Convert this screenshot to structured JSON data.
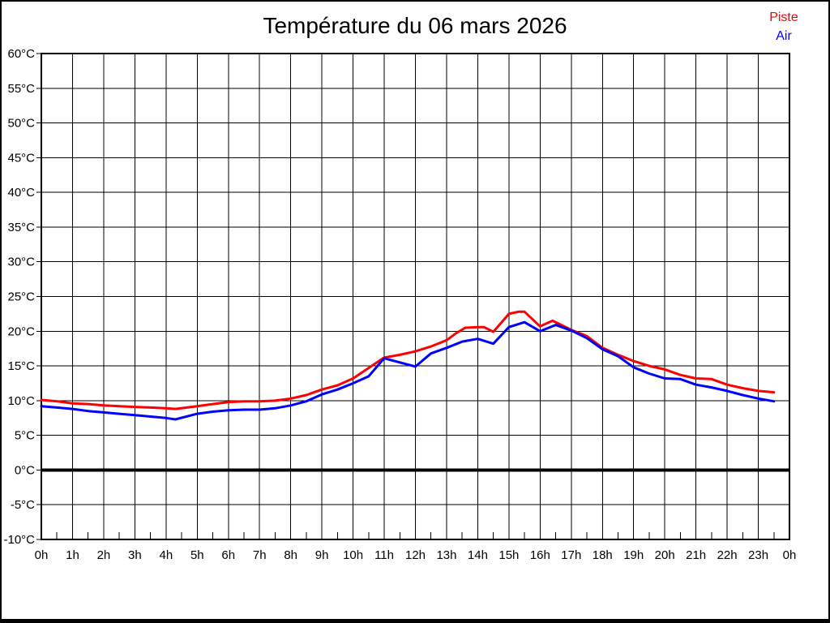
{
  "chart_data": {
    "type": "line",
    "title": "Température du 06 mars 2026",
    "xlabel": "",
    "ylabel": "",
    "xlim": [
      0,
      24
    ],
    "ylim": [
      -10,
      60
    ],
    "grid": true,
    "zero_line_value": 0,
    "legend_position": "top-right",
    "x_tick_labels": [
      "0h",
      "1h",
      "2h",
      "3h",
      "4h",
      "5h",
      "6h",
      "7h",
      "8h",
      "9h",
      "10h",
      "11h",
      "12h",
      "13h",
      "14h",
      "15h",
      "16h",
      "17h",
      "18h",
      "19h",
      "20h",
      "21h",
      "22h",
      "23h",
      "0h"
    ],
    "y_tick_labels": [
      "60°C",
      "55°C",
      "50°C",
      "45°C",
      "40°C",
      "35°C",
      "30°C",
      "25°C",
      "20°C",
      "15°C",
      "10°C",
      "5°C",
      "0°C",
      "-5°C",
      "-10°C"
    ],
    "y_tick_values": [
      60,
      55,
      50,
      45,
      40,
      35,
      30,
      25,
      20,
      15,
      10,
      5,
      0,
      -5,
      -10
    ],
    "series": [
      {
        "name": "Piste",
        "color": "#ff0000",
        "points": [
          [
            0,
            10.1
          ],
          [
            0.5,
            9.9
          ],
          [
            1,
            9.6
          ],
          [
            1.5,
            9.5
          ],
          [
            2,
            9.3
          ],
          [
            2.5,
            9.2
          ],
          [
            3,
            9.1
          ],
          [
            3.5,
            9.0
          ],
          [
            4,
            8.9
          ],
          [
            4.3,
            8.8
          ],
          [
            5,
            9.2
          ],
          [
            5.5,
            9.5
          ],
          [
            6,
            9.8
          ],
          [
            6.5,
            9.9
          ],
          [
            7,
            9.9
          ],
          [
            7.5,
            10.0
          ],
          [
            8,
            10.3
          ],
          [
            8.5,
            10.8
          ],
          [
            9,
            11.6
          ],
          [
            9.5,
            12.2
          ],
          [
            10,
            13.2
          ],
          [
            10.5,
            14.7
          ],
          [
            11,
            16.2
          ],
          [
            11.5,
            16.6
          ],
          [
            12,
            17.1
          ],
          [
            12.5,
            17.8
          ],
          [
            13,
            18.7
          ],
          [
            13.3,
            19.7
          ],
          [
            13.6,
            20.5
          ],
          [
            14,
            20.6
          ],
          [
            14.2,
            20.6
          ],
          [
            14.5,
            19.9
          ],
          [
            15,
            22.5
          ],
          [
            15.3,
            22.8
          ],
          [
            15.5,
            22.8
          ],
          [
            16,
            20.7
          ],
          [
            16.4,
            21.5
          ],
          [
            17,
            20.2
          ],
          [
            17.5,
            19.3
          ],
          [
            18,
            17.6
          ],
          [
            18.5,
            16.6
          ],
          [
            19,
            15.7
          ],
          [
            19.5,
            15.0
          ],
          [
            20,
            14.5
          ],
          [
            20.5,
            13.7
          ],
          [
            21,
            13.2
          ],
          [
            21.5,
            13.1
          ],
          [
            22,
            12.3
          ],
          [
            22.5,
            11.8
          ],
          [
            23,
            11.4
          ],
          [
            23.5,
            11.2
          ]
        ]
      },
      {
        "name": "Air",
        "color": "#0000ff",
        "points": [
          [
            0,
            9.2
          ],
          [
            0.5,
            9.0
          ],
          [
            1,
            8.8
          ],
          [
            1.5,
            8.5
          ],
          [
            2,
            8.3
          ],
          [
            2.5,
            8.1
          ],
          [
            3,
            7.9
          ],
          [
            3.5,
            7.7
          ],
          [
            4,
            7.5
          ],
          [
            4.3,
            7.3
          ],
          [
            5,
            8.1
          ],
          [
            5.5,
            8.4
          ],
          [
            6,
            8.6
          ],
          [
            6.5,
            8.7
          ],
          [
            7,
            8.7
          ],
          [
            7.5,
            8.9
          ],
          [
            8,
            9.3
          ],
          [
            8.5,
            9.9
          ],
          [
            9,
            10.9
          ],
          [
            9.5,
            11.6
          ],
          [
            10,
            12.5
          ],
          [
            10.5,
            13.5
          ],
          [
            11,
            16.1
          ],
          [
            11.5,
            15.5
          ],
          [
            12,
            14.9
          ],
          [
            12.5,
            16.8
          ],
          [
            13,
            17.6
          ],
          [
            13.5,
            18.5
          ],
          [
            14,
            18.9
          ],
          [
            14.5,
            18.2
          ],
          [
            15,
            20.6
          ],
          [
            15.5,
            21.3
          ],
          [
            16,
            20.0
          ],
          [
            16.5,
            20.9
          ],
          [
            17,
            20.1
          ],
          [
            17.5,
            19.0
          ],
          [
            18,
            17.4
          ],
          [
            18.5,
            16.4
          ],
          [
            19,
            14.8
          ],
          [
            19.5,
            13.9
          ],
          [
            20,
            13.2
          ],
          [
            20.5,
            13.1
          ],
          [
            21,
            12.3
          ],
          [
            21.5,
            11.9
          ],
          [
            22,
            11.4
          ],
          [
            22.5,
            10.8
          ],
          [
            23,
            10.3
          ],
          [
            23.5,
            9.9
          ]
        ]
      }
    ]
  },
  "colors": {
    "grid": "#000000",
    "background": "#ffffff",
    "text": "#000000"
  }
}
